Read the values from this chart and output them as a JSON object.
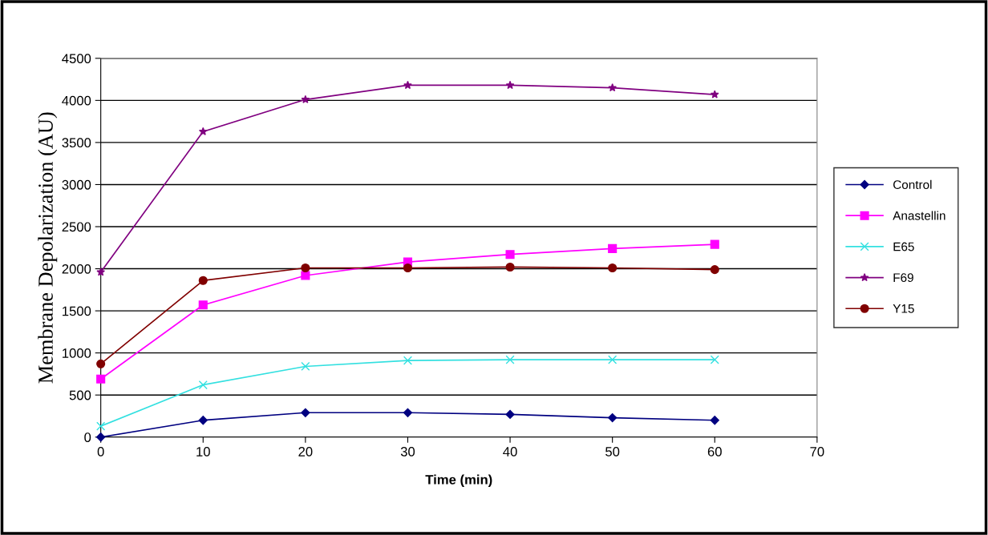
{
  "chart_data": {
    "type": "line",
    "xlabel": "Time (min)",
    "ylabel": "Membrane Depolarization (AU)",
    "x": [
      0,
      10,
      20,
      30,
      40,
      50,
      60
    ],
    "series": [
      {
        "name": "Control",
        "color": "#000080",
        "marker": "diamond",
        "values": [
          0,
          200,
          290,
          290,
          270,
          230,
          200
        ]
      },
      {
        "name": "Anastellin",
        "color": "#ff00ff",
        "marker": "square",
        "values": [
          690,
          1570,
          1920,
          2080,
          2170,
          2240,
          2290
        ]
      },
      {
        "name": "E65",
        "color": "#33e0e0",
        "marker": "cross",
        "values": [
          130,
          620,
          840,
          910,
          920,
          920,
          920
        ]
      },
      {
        "name": "F69",
        "color": "#800080",
        "marker": "star",
        "values": [
          1960,
          3630,
          4010,
          4180,
          4180,
          4150,
          4070
        ]
      },
      {
        "name": "Y15",
        "color": "#800000",
        "marker": "circle",
        "values": [
          870,
          1860,
          2010,
          2010,
          2020,
          2010,
          1990
        ]
      }
    ],
    "xlim": [
      0,
      70
    ],
    "xticks": [
      0,
      10,
      20,
      30,
      40,
      50,
      60,
      70
    ],
    "ylim": [
      0,
      4500
    ],
    "yticks": [
      0,
      500,
      1000,
      1500,
      2000,
      2500,
      3000,
      3500,
      4000,
      4500
    ],
    "grid": "y",
    "legend": "right"
  }
}
